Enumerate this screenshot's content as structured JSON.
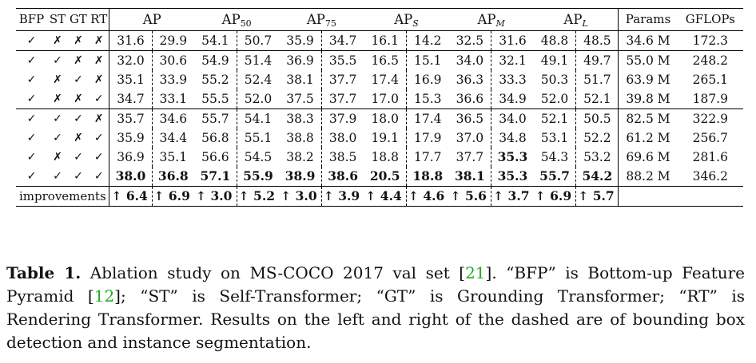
{
  "table": {
    "method_headers": [
      "BFP",
      "ST",
      "GT",
      "RT"
    ],
    "metric_headers": [
      {
        "base": "AP",
        "sub": ""
      },
      {
        "base": "AP",
        "sub": "50"
      },
      {
        "base": "AP",
        "sub": "75"
      },
      {
        "base": "AP",
        "sub": "S"
      },
      {
        "base": "AP",
        "sub": "M"
      },
      {
        "base": "AP",
        "sub": "L"
      }
    ],
    "params_header": "Params",
    "gflops_header": "GFLOPs",
    "rows": [
      {
        "marks": [
          "✓",
          "✗",
          "✗",
          "✗"
        ],
        "values": [
          "31.6",
          "29.9",
          "54.1",
          "50.7",
          "35.9",
          "34.7",
          "16.1",
          "14.2",
          "32.5",
          "31.6",
          "48.8",
          "48.5"
        ],
        "params": "34.6 M",
        "gflops": "172.3"
      },
      {
        "marks": [
          "✓",
          "✓",
          "✗",
          "✗"
        ],
        "values": [
          "32.0",
          "30.6",
          "54.9",
          "51.4",
          "36.9",
          "35.5",
          "16.5",
          "15.1",
          "34.0",
          "32.1",
          "49.1",
          "49.7"
        ],
        "params": "55.0 M",
        "gflops": "248.2"
      },
      {
        "marks": [
          "✓",
          "✗",
          "✓",
          "✗"
        ],
        "values": [
          "35.1",
          "33.9",
          "55.2",
          "52.4",
          "38.1",
          "37.7",
          "17.4",
          "16.9",
          "36.3",
          "33.3",
          "50.3",
          "51.7"
        ],
        "params": "63.9 M",
        "gflops": "265.1"
      },
      {
        "marks": [
          "✓",
          "✗",
          "✗",
          "✓"
        ],
        "values": [
          "34.7",
          "33.1",
          "55.5",
          "52.0",
          "37.5",
          "37.7",
          "17.0",
          "15.3",
          "36.6",
          "34.9",
          "52.0",
          "52.1"
        ],
        "params": "39.8 M",
        "gflops": "187.9"
      },
      {
        "marks": [
          "✓",
          "✓",
          "✓",
          "✗"
        ],
        "values": [
          "35.7",
          "34.6",
          "55.7",
          "54.1",
          "38.3",
          "37.9",
          "18.0",
          "17.4",
          "36.5",
          "34.0",
          "52.1",
          "50.5"
        ],
        "params": "82.5 M",
        "gflops": "322.9"
      },
      {
        "marks": [
          "✓",
          "✓",
          "✗",
          "✓"
        ],
        "values": [
          "35.9",
          "34.4",
          "56.8",
          "55.1",
          "38.8",
          "38.0",
          "19.1",
          "17.9",
          "37.0",
          "34.8",
          "53.1",
          "52.2"
        ],
        "params": "61.2 M",
        "gflops": "256.7"
      },
      {
        "marks": [
          "✓",
          "✗",
          "✓",
          "✓"
        ],
        "values": [
          "36.9",
          "35.1",
          "56.6",
          "54.5",
          "38.2",
          "38.5",
          "18.8",
          "17.7",
          "37.7",
          "35.3",
          "54.3",
          "53.2"
        ],
        "params": "69.6 M",
        "gflops": "281.6"
      },
      {
        "marks": [
          "✓",
          "✓",
          "✓",
          "✓"
        ],
        "values": [
          "38.0",
          "36.8",
          "57.1",
          "55.9",
          "38.9",
          "38.6",
          "20.5",
          "18.8",
          "38.1",
          "35.3",
          "55.7",
          "54.2"
        ],
        "params": "88.2 M",
        "gflops": "346.2"
      }
    ],
    "bold": [
      [],
      [],
      [],
      [],
      [],
      [],
      [
        9
      ],
      [
        0,
        1,
        2,
        3,
        4,
        5,
        6,
        7,
        8,
        9,
        10,
        11
      ]
    ],
    "separators_before": [
      1,
      4
    ],
    "improvements_label": "improvements",
    "improvements": [
      "↑ 6.4",
      "↑ 6.9",
      "↑ 3.0",
      "↑ 5.2",
      "↑ 3.0",
      "↑ 3.9",
      "↑ 4.4",
      "↑ 4.6",
      "↑ 5.6",
      "↑ 3.7",
      "↑ 6.9",
      "↑ 5.7"
    ]
  },
  "caption": {
    "label": "Table 1.",
    "parts": [
      {
        "text": " Ablation study on MS-COCO 2017 val set [",
        "ref": false
      },
      {
        "text": "21",
        "ref": true
      },
      {
        "text": "]. “BFP” is Bottom-up Feature Pyramid [",
        "ref": false
      },
      {
        "text": "12",
        "ref": true
      },
      {
        "text": "]; “ST” is Self-Transformer; “GT” is Grounding Transformer; “RT” is Rendering Transformer. Results on the left and right of the dashed are of bounding box detection and instance segmentation.",
        "ref": false
      }
    ]
  }
}
